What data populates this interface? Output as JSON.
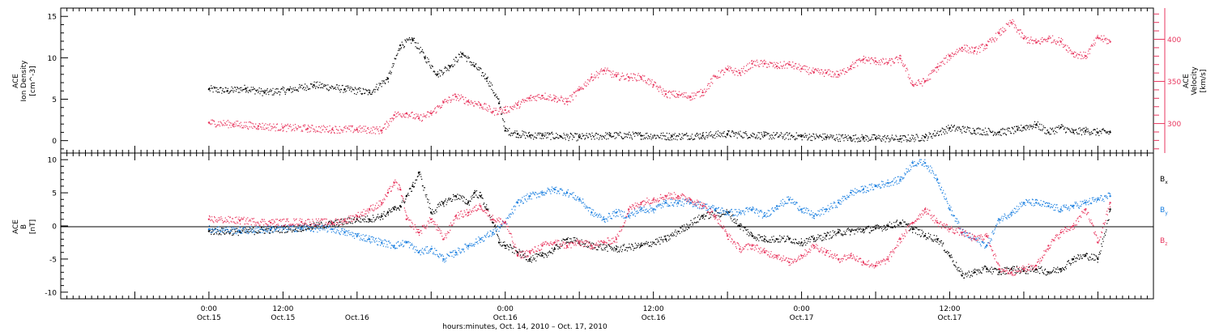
{
  "chart_data": [
    {
      "type": "scatter",
      "title": "",
      "panel": "plasma",
      "ylabel_left": [
        "ACE",
        "Ion Density",
        "[cm^-3]"
      ],
      "ylabel_right": [
        "ACE",
        "Velocity",
        "[km/s]"
      ],
      "left_axis": {
        "ylim": [
          -1.5,
          16
        ],
        "ticks": [
          0,
          5,
          10,
          15
        ]
      },
      "right_axis": {
        "ylim": [
          265,
          437
        ],
        "ticks": [
          300,
          350,
          400
        ],
        "color": "#e8375f"
      },
      "series": [
        {
          "name": "Ion Density",
          "axis": "left",
          "color": "#000000",
          "x": [
            0,
            3,
            6,
            9,
            13,
            17,
            22,
            26,
            29,
            31,
            33,
            35,
            37,
            39,
            41,
            43,
            45,
            47,
            48,
            50,
            52,
            54,
            57,
            60,
            65,
            70,
            75,
            80,
            84,
            90,
            96,
            100,
            104,
            106,
            108,
            112,
            116,
            120,
            124,
            128,
            131,
            132,
            134,
            136,
            138,
            140,
            142,
            144,
            146
          ],
          "y": [
            6.2,
            6.0,
            6.3,
            5.8,
            6.1,
            6.7,
            6.2,
            5.8,
            7.5,
            11.5,
            12.2,
            10.0,
            8.0,
            9.0,
            10.5,
            9.0,
            7.5,
            4.5,
            1.2,
            0.8,
            0.6,
            0.6,
            0.5,
            0.4,
            0.6,
            0.6,
            0.5,
            0.6,
            0.8,
            0.6,
            0.5,
            0.4,
            0.3,
            0.3,
            0.3,
            0.2,
            0.4,
            1.5,
            1.2,
            1.0,
            1.3,
            1.6,
            1.9,
            1.0,
            1.6,
            1.0,
            1.2,
            1.0,
            1.0
          ]
        },
        {
          "name": "Velocity",
          "axis": "right",
          "color": "#e8375f",
          "x": [
            0,
            4,
            8,
            12,
            16,
            20,
            24,
            28,
            30,
            32,
            34,
            36,
            38,
            40,
            42,
            44,
            46,
            48,
            50,
            52,
            54,
            56,
            58,
            60,
            62,
            64,
            66,
            68,
            70,
            72,
            74,
            76,
            78,
            80,
            82,
            84,
            86,
            88,
            90,
            92,
            94,
            96,
            98,
            100,
            102,
            104,
            106,
            108,
            110,
            112,
            114,
            116,
            118,
            120,
            122,
            124,
            126,
            128,
            130,
            132,
            134,
            136,
            138,
            140,
            142,
            144,
            146
          ],
          "y": [
            301,
            299,
            297,
            295,
            294,
            293,
            293,
            292,
            310,
            312,
            306,
            312,
            325,
            332,
            326,
            322,
            314,
            316,
            322,
            330,
            333,
            330,
            326,
            340,
            355,
            363,
            356,
            355,
            355,
            346,
            335,
            334,
            332,
            337,
            356,
            364,
            360,
            371,
            371,
            368,
            370,
            365,
            361,
            360,
            358,
            368,
            376,
            374,
            372,
            377,
            346,
            350,
            367,
            380,
            390,
            386,
            393,
            407,
            420,
            401,
            396,
            401,
            397,
            383,
            380,
            402,
            397
          ]
        }
      ]
    },
    {
      "type": "scatter",
      "title": "",
      "panel": "magnetic-field",
      "ylabel_left": [
        "ACE",
        "B",
        "[nT]"
      ],
      "ylim": [
        -11,
        11
      ],
      "ticks": [
        -10,
        -5,
        0,
        5,
        10
      ],
      "legend": "right",
      "series": [
        {
          "name": "Bx",
          "color": "#000000",
          "x": [
            0,
            5,
            10,
            15,
            20,
            24,
            26,
            28,
            29,
            30,
            31,
            32,
            33,
            34,
            36,
            38,
            40,
            42,
            43,
            44,
            45,
            46,
            47,
            48,
            50,
            52,
            54,
            56,
            58,
            60,
            62,
            66,
            70,
            74,
            80,
            84,
            86,
            88,
            90,
            92,
            94,
            96,
            98,
            100,
            102,
            104,
            106,
            108,
            110,
            112,
            114,
            116,
            118,
            120,
            122,
            124,
            126,
            128,
            130,
            132,
            134,
            136,
            138,
            140,
            142,
            144,
            146
          ],
          "y": [
            -0.8,
            -0.9,
            -0.6,
            -0.3,
            0.3,
            1.0,
            1.0,
            1.5,
            2.0,
            2.5,
            3.0,
            4.5,
            6.0,
            8.0,
            2.0,
            3.5,
            4.5,
            3.5,
            5.0,
            4.5,
            2.5,
            0.5,
            -2.5,
            -3.0,
            -4.0,
            -5.0,
            -4.5,
            -3.5,
            -2.0,
            -2.5,
            -3.0,
            -3.5,
            -3.0,
            -2.0,
            1.5,
            2.0,
            0.0,
            -1.5,
            -2.0,
            -2.0,
            -2.0,
            -2.5,
            -2.0,
            -1.5,
            -1.0,
            -0.8,
            -0.6,
            -0.4,
            0.0,
            0.5,
            -0.5,
            -1.5,
            -2.0,
            -4.5,
            -7.5,
            -7.0,
            -6.5,
            -7.0,
            -6.5,
            -6.8,
            -6.5,
            -7.0,
            -6.5,
            -5.0,
            -4.5,
            -5.0,
            2.5
          ]
        },
        {
          "name": "By",
          "color": "#1a7fe0",
          "x": [
            0,
            5,
            10,
            15,
            20,
            22,
            24,
            26,
            28,
            30,
            32,
            34,
            36,
            38,
            40,
            42,
            44,
            46,
            48,
            50,
            52,
            54,
            56,
            58,
            60,
            62,
            64,
            66,
            68,
            70,
            72,
            74,
            76,
            78,
            80,
            82,
            84,
            86,
            88,
            90,
            92,
            94,
            96,
            98,
            100,
            102,
            104,
            106,
            108,
            110,
            112,
            114,
            116,
            118,
            120,
            122,
            124,
            126,
            128,
            130,
            132,
            134,
            136,
            138,
            140,
            142,
            144,
            146
          ],
          "y": [
            -0.5,
            -0.7,
            -0.5,
            -0.3,
            -0.5,
            -1.0,
            -1.5,
            -2.0,
            -2.5,
            -3.0,
            -2.5,
            -4.0,
            -3.5,
            -5.0,
            -4.0,
            -3.0,
            -2.0,
            -1.0,
            0.5,
            3.5,
            4.5,
            5.0,
            5.5,
            5.0,
            4.0,
            2.0,
            1.0,
            2.0,
            1.5,
            2.5,
            2.5,
            3.5,
            3.5,
            3.5,
            3.0,
            2.5,
            2.0,
            2.0,
            2.5,
            1.5,
            3.0,
            4.0,
            2.5,
            1.5,
            2.5,
            3.5,
            5.0,
            5.5,
            6.0,
            6.5,
            7.0,
            9.5,
            9.5,
            7.0,
            2.5,
            -1.0,
            -2.0,
            -3.0,
            1.0,
            2.0,
            3.5,
            3.5,
            3.0,
            2.5,
            3.0,
            3.5,
            4.0,
            4.5
          ]
        },
        {
          "name": "Bz",
          "color": "#e8375f",
          "x": [
            0,
            5,
            10,
            15,
            20,
            22,
            24,
            26,
            28,
            29,
            30,
            31,
            32,
            34,
            36,
            38,
            40,
            42,
            44,
            46,
            48,
            50,
            52,
            54,
            56,
            58,
            60,
            62,
            64,
            66,
            68,
            70,
            72,
            74,
            76,
            78,
            80,
            82,
            84,
            86,
            88,
            90,
            92,
            94,
            96,
            98,
            100,
            102,
            104,
            106,
            108,
            110,
            112,
            114,
            116,
            118,
            120,
            122,
            124,
            126,
            128,
            130,
            132,
            134,
            136,
            138,
            140,
            142,
            144,
            146
          ],
          "y": [
            1.0,
            0.8,
            0.5,
            0.6,
            0.5,
            0.8,
            1.5,
            2.5,
            3.5,
            5.0,
            6.5,
            5.5,
            1.0,
            -1.0,
            1.0,
            -2.0,
            1.5,
            2.0,
            3.0,
            1.0,
            0.5,
            -4.5,
            -4.0,
            -3.0,
            -2.5,
            -3.0,
            -2.5,
            -3.0,
            -2.5,
            -2.0,
            2.5,
            3.5,
            4.0,
            4.5,
            4.5,
            4.0,
            3.0,
            1.5,
            -1.5,
            -3.5,
            -3.0,
            -4.0,
            -4.5,
            -5.5,
            -4.5,
            -3.0,
            -4.0,
            -5.0,
            -4.5,
            -5.5,
            -6.0,
            -5.0,
            -2.0,
            0.5,
            2.5,
            0.5,
            -0.5,
            -1.0,
            -2.0,
            -1.5,
            -6.5,
            -7.0,
            -6.5,
            -6.0,
            -3.0,
            -1.0,
            0.0,
            2.5,
            -2.5,
            3.5
          ]
        }
      ]
    }
  ],
  "x_axis": {
    "unit": "hours",
    "range": [
      -24,
      153
    ],
    "major_ticks": [
      {
        "x": 0,
        "time": "0:00",
        "date": "Oct.15"
      },
      {
        "x": 12,
        "time": "12:00",
        "date": "Oct.15"
      },
      {
        "x": 24,
        "time": "",
        "date": "Oct.16"
      },
      {
        "x": 48,
        "time": "0:00",
        "date": "Oct.16"
      },
      {
        "x": 72,
        "time": "12:00",
        "date": "Oct.16"
      },
      {
        "x": 84,
        "time": "",
        "date": ""
      },
      {
        "x": 96,
        "time": "0:00",
        "date": "Oct.17"
      },
      {
        "x": 120,
        "time": "12:00",
        "date": "Oct.17"
      }
    ],
    "xlabel": "hours:minutes, Oct. 14, 2010 – Oct. 17, 2010"
  },
  "labels": {
    "bx": "B",
    "bx_sub": "x",
    "by": "B",
    "by_sub": "y",
    "bz": "B",
    "bz_sub": "z",
    "xlabel": "hours:minutes, Oct. 14, 2010 – Oct. 17, 2010"
  }
}
